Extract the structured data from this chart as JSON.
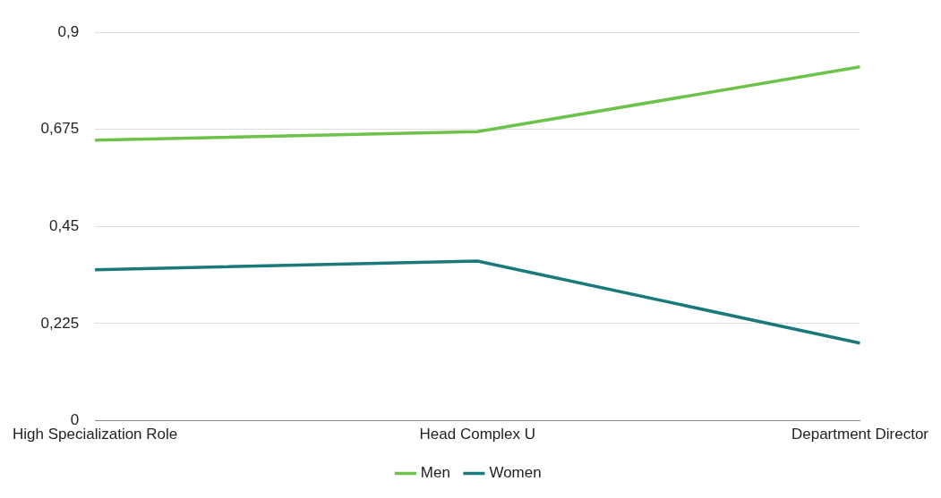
{
  "chart_data": {
    "type": "line",
    "categories": [
      "High Specialization Role",
      "Head Complex U",
      "Department Director"
    ],
    "series": [
      {
        "name": "Men",
        "color": "#6cc24a",
        "values": [
          0.65,
          0.67,
          0.82
        ]
      },
      {
        "name": "Women",
        "color": "#1a7a7a",
        "values": [
          0.35,
          0.37,
          0.18
        ]
      }
    ],
    "ylim": [
      0,
      0.9
    ],
    "yticks": [
      {
        "value": 0,
        "label": "0"
      },
      {
        "value": 0.225,
        "label": "0,225"
      },
      {
        "value": 0.45,
        "label": "0,45"
      },
      {
        "value": 0.675,
        "label": "0,675"
      },
      {
        "value": 0.9,
        "label": "0,9"
      }
    ],
    "grid": "y",
    "legend": "bottom",
    "marker": "none",
    "line_style": "solid"
  }
}
